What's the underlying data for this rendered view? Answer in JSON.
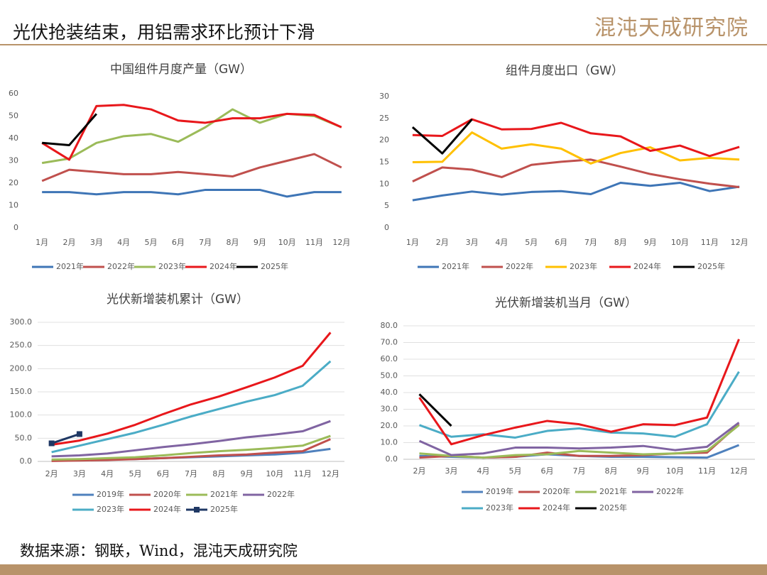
{
  "header": {
    "title": "光伏抢装结束，用铝需求环比预计下滑",
    "logo": "混沌天成研究院"
  },
  "source": "数据来源：钢联，Wind，混沌天成研究院",
  "chart_data": [
    {
      "type": "line",
      "title": "中国组件月度产量（GW）",
      "categories": [
        "1月",
        "2月",
        "3月",
        "4月",
        "5月",
        "6月",
        "7月",
        "8月",
        "9月",
        "10月",
        "11月",
        "12月"
      ],
      "ylim": [
        0,
        60
      ],
      "yticks": [
        0,
        10,
        20,
        30,
        40,
        50,
        60
      ],
      "grid": false,
      "series": [
        {
          "name": "2021年",
          "color": "#3e75b6",
          "values": [
            16,
            16,
            15,
            16,
            16,
            15,
            17,
            17,
            17,
            14,
            16,
            16
          ]
        },
        {
          "name": "2022年",
          "color": "#c0504d",
          "values": [
            21,
            26,
            25,
            24,
            24,
            25,
            24,
            23,
            27,
            30,
            33,
            27
          ]
        },
        {
          "name": "2023年",
          "color": "#9bbb59",
          "values": [
            29,
            31,
            38,
            41,
            42,
            38.5,
            45,
            53,
            47,
            51,
            50,
            45
          ]
        },
        {
          "name": "2024年",
          "color": "#e8171b",
          "values": [
            38,
            30.5,
            54.5,
            55,
            53,
            48,
            47,
            49,
            49,
            51,
            50.5,
            45
          ]
        },
        {
          "name": "2025年",
          "color": "#000000",
          "values": [
            38,
            37,
            51,
            null,
            null,
            null,
            null,
            null,
            null,
            null,
            null,
            null
          ]
        }
      ]
    },
    {
      "type": "line",
      "title": "组件月度出口（GW）",
      "categories": [
        "1月",
        "2月",
        "3月",
        "4月",
        "5月",
        "6月",
        "7月",
        "8月",
        "9月",
        "10月",
        "11月",
        "12月"
      ],
      "ylim": [
        0,
        30
      ],
      "yticks": [
        0,
        5,
        10,
        15,
        20,
        25,
        30
      ],
      "grid": false,
      "series": [
        {
          "name": "2021年",
          "color": "#3e75b6",
          "values": [
            6.3,
            7.4,
            8.3,
            7.6,
            8.2,
            8.4,
            7.7,
            10.3,
            9.6,
            10.3,
            8.4,
            9.4
          ]
        },
        {
          "name": "2022年",
          "color": "#c0504d",
          "values": [
            10.6,
            13.8,
            13.3,
            11.6,
            14.4,
            15.1,
            15.6,
            14,
            12.3,
            11.1,
            10.1,
            9.3
          ]
        },
        {
          "name": "2023年",
          "color": "#ffc000",
          "values": [
            15,
            15.1,
            21.8,
            18.1,
            19.1,
            18.1,
            14.7,
            17.1,
            18.4,
            15.4,
            16,
            15.6
          ]
        },
        {
          "name": "2024年",
          "color": "#e8171b",
          "values": [
            21.2,
            21,
            24.8,
            22.5,
            22.6,
            24,
            21.6,
            20.9,
            17.6,
            18.8,
            16.4,
            18.5
          ]
        },
        {
          "name": "2025年",
          "color": "#000000",
          "values": [
            23,
            17,
            24.8,
            null,
            null,
            null,
            null,
            null,
            null,
            null,
            null,
            null
          ]
        }
      ]
    },
    {
      "type": "line",
      "title": "光伏新增装机累计（GW）",
      "categories": [
        "2月",
        "3月",
        "4月",
        "5月",
        "6月",
        "7月",
        "8月",
        "9月",
        "10月",
        "11月",
        "12月"
      ],
      "ylim": [
        0,
        300
      ],
      "yticks": [
        {
          "value": 0,
          "label": "0.0"
        },
        {
          "value": 50,
          "label": "50.0"
        },
        {
          "value": 100,
          "label": "100.0"
        },
        {
          "value": 150,
          "label": "150.0"
        },
        {
          "value": 200,
          "label": "200.0"
        },
        {
          "value": 250,
          "label": "250.0"
        },
        {
          "value": 300,
          "label": "300.0"
        }
      ],
      "grid": true,
      "series": [
        {
          "name": "2019年",
          "color": "#4f81bd",
          "values": [
            2,
            3,
            4,
            5,
            7,
            9,
            11,
            13,
            15,
            19,
            27
          ]
        },
        {
          "name": "2020年",
          "color": "#c0504d",
          "values": [
            1,
            2,
            3,
            5,
            7,
            10,
            13,
            15,
            19,
            22,
            48
          ]
        },
        {
          "name": "2021年",
          "color": "#9bbb59",
          "values": [
            4,
            5,
            7,
            9,
            13,
            18,
            22,
            25,
            29,
            34,
            55
          ]
        },
        {
          "name": "2022年",
          "color": "#8064a2",
          "values": [
            11,
            13,
            17,
            24,
            31,
            37,
            44,
            52,
            58,
            65,
            87
          ]
        },
        {
          "name": "2023年",
          "color": "#4bacc6",
          "values": [
            20,
            34,
            48,
            62,
            79,
            97,
            113,
            129,
            143,
            163,
            216
          ]
        },
        {
          "name": "2024年",
          "color": "#e8171b",
          "values": [
            36,
            45,
            60,
            79,
            102,
            123,
            140,
            160,
            181,
            206,
            278
          ]
        },
        {
          "name": "2025年",
          "color": "#1f3864",
          "marker": "square",
          "values": [
            39,
            59,
            null,
            null,
            null,
            null,
            null,
            null,
            null,
            null,
            null
          ]
        }
      ]
    },
    {
      "type": "line",
      "title": "光伏新增装机当月（GW）",
      "categories": [
        "2月",
        "3月",
        "4月",
        "5月",
        "6月",
        "7月",
        "8月",
        "9月",
        "10月",
        "11月",
        "12月"
      ],
      "ylim": [
        0,
        80
      ],
      "yticks": [
        {
          "value": 0,
          "label": "0.0"
        },
        {
          "value": 10,
          "label": "10.0"
        },
        {
          "value": 20,
          "label": "20.0"
        },
        {
          "value": 30,
          "label": "30.0"
        },
        {
          "value": 40,
          "label": "40.0"
        },
        {
          "value": 50,
          "label": "50.0"
        },
        {
          "value": 60,
          "label": "60.0"
        },
        {
          "value": 70,
          "label": "70.0"
        },
        {
          "value": 80,
          "label": "80.0"
        }
      ],
      "grid": true,
      "series": [
        {
          "name": "2019年",
          "color": "#4f81bd",
          "values": [
            2,
            1.5,
            1,
            1.5,
            3,
            2,
            1.5,
            1.5,
            1.2,
            1,
            8.5
          ]
        },
        {
          "name": "2020年",
          "color": "#c0504d",
          "values": [
            1,
            2,
            1,
            1.5,
            4,
            2,
            2,
            2.5,
            3.5,
            4,
            21
          ]
        },
        {
          "name": "2021年",
          "color": "#9bbb59",
          "values": [
            3.5,
            2,
            1,
            2.5,
            3,
            5,
            4,
            3,
            3.5,
            5,
            20.5
          ]
        },
        {
          "name": "2022年",
          "color": "#8064a2",
          "values": [
            11,
            2.5,
            3.5,
            7,
            7,
            6.5,
            7,
            8,
            5.5,
            7.5,
            22
          ]
        },
        {
          "name": "2023年",
          "color": "#4bacc6",
          "values": [
            20.5,
            13.5,
            15,
            13,
            17,
            18.5,
            16,
            15.5,
            13.5,
            21,
            52.5
          ]
        },
        {
          "name": "2024年",
          "color": "#e8171b",
          "values": [
            37,
            9,
            14.5,
            19,
            23,
            21,
            16.5,
            21,
            20.5,
            25,
            72
          ]
        },
        {
          "name": "2025年",
          "color": "#000000",
          "values": [
            39,
            20,
            null,
            null,
            null,
            null,
            null,
            null,
            null,
            null,
            null
          ]
        }
      ]
    }
  ]
}
